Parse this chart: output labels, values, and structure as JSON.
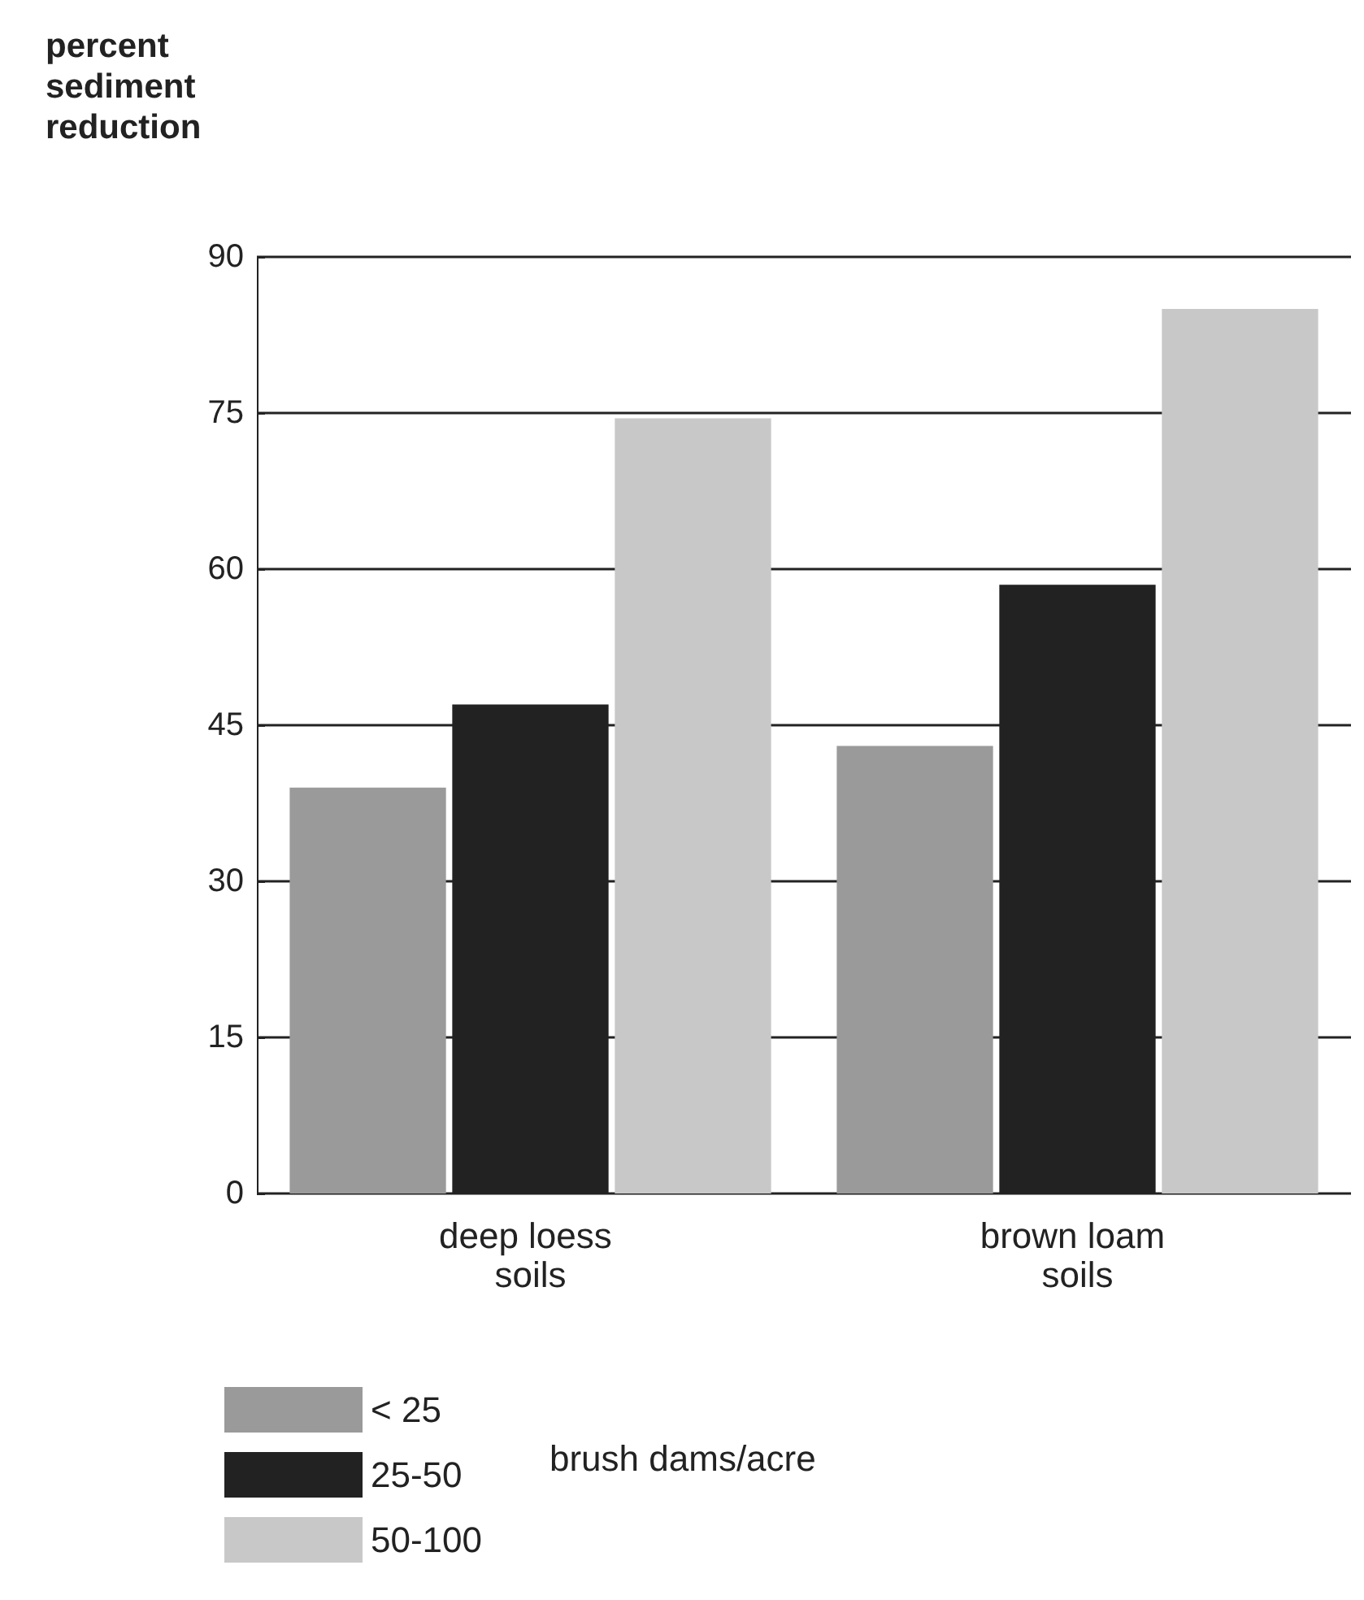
{
  "chart_data": {
    "type": "bar",
    "ylabel": "percent sediment reduction",
    "legend_title": "brush dams/acre",
    "categories": [
      "deep loess soils",
      "brown loam soils"
    ],
    "series": [
      {
        "name": "< 25",
        "color": "#9a9a9a",
        "values": [
          39,
          43
        ]
      },
      {
        "name": "25-50",
        "color": "#222222",
        "values": [
          47,
          58.5
        ]
      },
      {
        "name": "50-100",
        "color": "#c8c8c8",
        "values": [
          74.5,
          85
        ]
      }
    ],
    "ylim": [
      0,
      90
    ],
    "yticks": [
      0,
      15,
      30,
      45,
      60,
      75,
      90
    ],
    "grid": "y",
    "legend": "bottom left"
  }
}
